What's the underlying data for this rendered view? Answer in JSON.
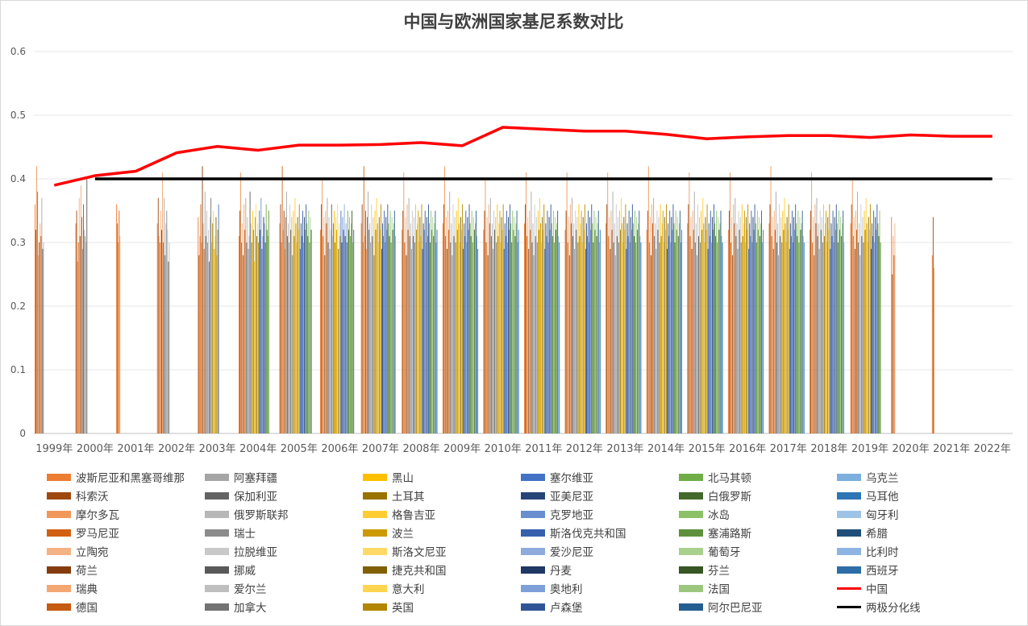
{
  "chart_data": {
    "type": "bar",
    "title": "中国与欧洲国家基尼系数对比",
    "categories": [
      "1999年",
      "2000年",
      "2001年",
      "2002年",
      "2003年",
      "2004年",
      "2005年",
      "2006年",
      "2007年",
      "2008年",
      "2009年",
      "2010年",
      "2011年",
      "2012年",
      "2013年",
      "2014年",
      "2015年",
      "2016年",
      "2017年",
      "2018年",
      "2019年",
      "2020年",
      "2021年",
      "2022年"
    ],
    "yticks": [
      "0",
      "0.1",
      "0.2",
      "0.3",
      "0.4",
      "0.5",
      "0.6"
    ],
    "ylim": [
      0,
      0.6
    ],
    "grid": true,
    "legend_position": "bottom",
    "bar_series": [
      {
        "name": "波斯尼亚和黑塞哥维那",
        "color": "#ed7d31"
      },
      {
        "name": "科索沃",
        "color": "#9e480e"
      },
      {
        "name": "摩尔多瓦",
        "color": "#f1975a"
      },
      {
        "name": "罗马尼亚",
        "color": "#d26012"
      },
      {
        "name": "立陶宛",
        "color": "#f4b183"
      },
      {
        "name": "荷兰",
        "color": "#843c0c"
      },
      {
        "name": "瑞典",
        "color": "#f4a773"
      },
      {
        "name": "德国",
        "color": "#c55a11"
      },
      {
        "name": "阿塞拜疆",
        "color": "#a5a5a5"
      },
      {
        "name": "保加利亚",
        "color": "#636363"
      },
      {
        "name": "俄罗斯联邦",
        "color": "#b7b7b7"
      },
      {
        "name": "瑞士",
        "color": "#8c8c8c"
      },
      {
        "name": "拉脱维亚",
        "color": "#c9c9c9"
      },
      {
        "name": "挪威",
        "color": "#595959"
      },
      {
        "name": "爱尔兰",
        "color": "#bfbfbf"
      },
      {
        "name": "加拿大",
        "color": "#737373"
      },
      {
        "name": "黑山",
        "color": "#ffc000"
      },
      {
        "name": "土耳其",
        "color": "#997300"
      },
      {
        "name": "格鲁吉亚",
        "color": "#ffcd33"
      },
      {
        "name": "波兰",
        "color": "#cc9a00"
      },
      {
        "name": "斯洛文尼亚",
        "color": "#ffd966"
      },
      {
        "name": "捷克共和国",
        "color": "#806000"
      },
      {
        "name": "意大利",
        "color": "#ffd54f"
      },
      {
        "name": "英国",
        "color": "#b38600"
      },
      {
        "name": "塞尔维亚",
        "color": "#4472c4"
      },
      {
        "name": "亚美尼亚",
        "color": "#264478"
      },
      {
        "name": "克罗地亚",
        "color": "#698ed0"
      },
      {
        "name": "斯洛伐克共和国",
        "color": "#3660ad"
      },
      {
        "name": "爱沙尼亚",
        "color": "#8faadc"
      },
      {
        "name": "丹麦",
        "color": "#1f3864"
      },
      {
        "name": "奥地利",
        "color": "#7f9fd8"
      },
      {
        "name": "卢森堡",
        "color": "#2f5597"
      },
      {
        "name": "北马其顿",
        "color": "#70ad47"
      },
      {
        "name": "白俄罗斯",
        "color": "#43682b"
      },
      {
        "name": "冰岛",
        "color": "#8cc168"
      },
      {
        "name": "塞浦路斯",
        "color": "#5f913c"
      },
      {
        "name": "葡萄牙",
        "color": "#a9d18e"
      },
      {
        "name": "芬兰",
        "color": "#375623"
      },
      {
        "name": "法国",
        "color": "#9dc77f"
      },
      {
        "name": "阿尔巴尼亚",
        "color": "#255e91"
      },
      {
        "name": "乌克兰",
        "color": "#7cafdd"
      },
      {
        "name": "马耳他",
        "color": "#2e75b6"
      },
      {
        "name": "匈牙利",
        "color": "#9dc3e6"
      },
      {
        "name": "希腊",
        "color": "#1f4e79"
      },
      {
        "name": "比利时",
        "color": "#8eb4e3"
      },
      {
        "name": "西班牙",
        "color": "#2e6ea8"
      }
    ],
    "bar_values_per_year": [
      [
        0.36,
        0.32,
        0.42,
        0.38,
        0.28,
        0.3,
        0.33,
        0.31,
        0.37,
        0.29,
        0.3
      ],
      [
        0.33,
        0.35,
        0.27,
        0.3,
        0.37,
        0.31,
        0.39,
        0.34,
        0.29,
        0.36,
        0.32,
        0.31,
        0.3,
        0.4
      ],
      [
        0.36,
        0.33,
        0.3,
        0.35,
        0.31
      ],
      [
        0.33,
        0.37,
        0.31,
        0.3,
        0.35,
        0.32,
        0.41,
        0.3,
        0.37,
        0.28,
        0.33,
        0.35,
        0.32,
        0.27,
        0.3
      ],
      [
        0.34,
        0.28,
        0.31,
        0.36,
        0.3,
        0.42,
        0.33,
        0.29,
        0.38,
        0.31,
        0.35,
        0.3,
        0.32,
        0.27,
        0.34,
        0.37,
        0.3,
        0.33,
        0.35,
        0.29,
        0.31,
        0.34,
        0.28,
        0.32,
        0.36
      ],
      [
        0.31,
        0.35,
        0.41,
        0.3,
        0.33,
        0.28,
        0.36,
        0.32,
        0.37,
        0.3,
        0.34,
        0.29,
        0.31,
        0.38,
        0.33,
        0.3,
        0.35,
        0.32,
        0.27,
        0.34,
        0.36,
        0.31,
        0.33,
        0.3,
        0.35,
        0.32,
        0.37,
        0.29,
        0.31,
        0.34,
        0.33,
        0.3,
        0.36,
        0.32,
        0.31,
        0.35
      ],
      [
        0.33,
        0.36,
        0.3,
        0.42,
        0.32,
        0.35,
        0.29,
        0.34,
        0.38,
        0.31,
        0.33,
        0.3,
        0.36,
        0.32,
        0.34,
        0.28,
        0.35,
        0.31,
        0.37,
        0.33,
        0.3,
        0.34,
        0.32,
        0.36,
        0.29,
        0.33,
        0.31,
        0.35,
        0.3,
        0.34,
        0.32,
        0.36,
        0.33,
        0.31,
        0.35,
        0.3,
        0.34,
        0.32
      ],
      [
        0.32,
        0.36,
        0.4,
        0.31,
        0.34,
        0.28,
        0.35,
        0.33,
        0.37,
        0.3,
        0.34,
        0.29,
        0.32,
        0.36,
        0.31,
        0.33,
        0.35,
        0.3,
        0.34,
        0.32,
        0.36,
        0.29,
        0.33,
        0.31,
        0.35,
        0.3,
        0.34,
        0.32,
        0.36,
        0.31,
        0.33,
        0.3,
        0.35,
        0.32,
        0.34,
        0.31,
        0.33,
        0.35,
        0.3,
        0.32
      ],
      [
        0.33,
        0.36,
        0.3,
        0.42,
        0.31,
        0.35,
        0.29,
        0.34,
        0.38,
        0.32,
        0.33,
        0.3,
        0.36,
        0.31,
        0.34,
        0.28,
        0.35,
        0.32,
        0.37,
        0.33,
        0.3,
        0.34,
        0.32,
        0.36,
        0.29,
        0.33,
        0.31,
        0.35,
        0.3,
        0.34,
        0.32,
        0.36,
        0.33,
        0.31,
        0.35,
        0.3,
        0.34,
        0.32,
        0.33,
        0.35,
        0.31
      ],
      [
        0.32,
        0.35,
        0.41,
        0.3,
        0.34,
        0.28,
        0.36,
        0.32,
        0.37,
        0.31,
        0.33,
        0.29,
        0.35,
        0.31,
        0.34,
        0.3,
        0.36,
        0.32,
        0.33,
        0.35,
        0.3,
        0.34,
        0.31,
        0.36,
        0.29,
        0.33,
        0.32,
        0.35,
        0.3,
        0.34,
        0.31,
        0.36,
        0.33,
        0.3,
        0.35,
        0.32,
        0.34,
        0.31,
        0.33,
        0.35,
        0.3,
        0.32
      ],
      [
        0.33,
        0.36,
        0.42,
        0.31,
        0.34,
        0.29,
        0.35,
        0.32,
        0.38,
        0.3,
        0.33,
        0.28,
        0.36,
        0.31,
        0.34,
        0.3,
        0.35,
        0.32,
        0.37,
        0.33,
        0.3,
        0.34,
        0.32,
        0.36,
        0.29,
        0.33,
        0.31,
        0.35,
        0.3,
        0.34,
        0.32,
        0.36,
        0.33,
        0.31,
        0.35,
        0.3,
        0.34,
        0.32,
        0.33,
        0.35,
        0.31,
        0.29
      ],
      [
        0.32,
        0.35,
        0.4,
        0.3,
        0.34,
        0.28,
        0.36,
        0.33,
        0.37,
        0.31,
        0.33,
        0.29,
        0.35,
        0.32,
        0.34,
        0.3,
        0.36,
        0.31,
        0.33,
        0.35,
        0.3,
        0.34,
        0.32,
        0.36,
        0.29,
        0.33,
        0.31,
        0.35,
        0.3,
        0.34,
        0.32,
        0.36,
        0.33,
        0.3,
        0.35,
        0.32,
        0.34,
        0.31,
        0.33,
        0.35,
        0.3,
        0.32
      ],
      [
        0.33,
        0.36,
        0.41,
        0.31,
        0.34,
        0.29,
        0.35,
        0.32,
        0.38,
        0.3,
        0.33,
        0.28,
        0.36,
        0.31,
        0.34,
        0.3,
        0.35,
        0.32,
        0.37,
        0.33,
        0.3,
        0.34,
        0.32,
        0.36,
        0.29,
        0.33,
        0.31,
        0.35,
        0.3,
        0.34,
        0.32,
        0.36,
        0.33,
        0.31,
        0.35,
        0.3,
        0.34,
        0.32,
        0.33,
        0.35,
        0.31,
        0.3
      ],
      [
        0.32,
        0.35,
        0.41,
        0.3,
        0.34,
        0.28,
        0.36,
        0.33,
        0.37,
        0.31,
        0.33,
        0.29,
        0.35,
        0.32,
        0.34,
        0.3,
        0.36,
        0.31,
        0.33,
        0.35,
        0.3,
        0.34,
        0.32,
        0.36,
        0.29,
        0.33,
        0.31,
        0.35,
        0.3,
        0.34,
        0.32,
        0.36,
        0.33,
        0.3,
        0.35,
        0.32,
        0.34,
        0.31,
        0.33,
        0.35,
        0.3,
        0.32
      ],
      [
        0.33,
        0.36,
        0.41,
        0.31,
        0.34,
        0.29,
        0.35,
        0.32,
        0.38,
        0.3,
        0.33,
        0.28,
        0.36,
        0.31,
        0.34,
        0.3,
        0.35,
        0.32,
        0.37,
        0.33,
        0.3,
        0.34,
        0.32,
        0.36,
        0.29,
        0.33,
        0.31,
        0.35,
        0.3,
        0.34,
        0.32,
        0.36,
        0.33,
        0.31,
        0.35,
        0.3,
        0.34,
        0.32,
        0.33,
        0.35,
        0.31,
        0.3
      ],
      [
        0.32,
        0.35,
        0.42,
        0.3,
        0.34,
        0.28,
        0.36,
        0.33,
        0.37,
        0.31,
        0.33,
        0.29,
        0.35,
        0.32,
        0.34,
        0.3,
        0.36,
        0.31,
        0.33,
        0.35,
        0.3,
        0.34,
        0.32,
        0.36,
        0.29,
        0.33,
        0.31,
        0.35,
        0.3,
        0.34,
        0.32,
        0.36,
        0.33,
        0.3,
        0.35,
        0.32,
        0.34,
        0.31,
        0.33,
        0.35,
        0.3,
        0.32
      ],
      [
        0.33,
        0.36,
        0.41,
        0.31,
        0.34,
        0.29,
        0.35,
        0.32,
        0.38,
        0.3,
        0.33,
        0.28,
        0.36,
        0.31,
        0.34,
        0.3,
        0.35,
        0.32,
        0.37,
        0.33,
        0.3,
        0.34,
        0.32,
        0.36,
        0.29,
        0.33,
        0.31,
        0.35,
        0.3,
        0.34,
        0.32,
        0.36,
        0.33,
        0.31,
        0.35,
        0.3,
        0.34,
        0.32,
        0.33,
        0.35,
        0.31,
        0.3
      ],
      [
        0.32,
        0.35,
        0.41,
        0.3,
        0.34,
        0.28,
        0.36,
        0.33,
        0.37,
        0.31,
        0.33,
        0.29,
        0.35,
        0.32,
        0.34,
        0.3,
        0.36,
        0.31,
        0.33,
        0.35,
        0.3,
        0.34,
        0.32,
        0.36,
        0.29,
        0.33,
        0.31,
        0.35,
        0.3,
        0.34,
        0.32,
        0.36,
        0.33,
        0.3,
        0.35,
        0.32,
        0.34,
        0.31,
        0.33,
        0.35,
        0.3,
        0.32
      ],
      [
        0.33,
        0.36,
        0.42,
        0.31,
        0.34,
        0.29,
        0.35,
        0.32,
        0.38,
        0.3,
        0.33,
        0.28,
        0.36,
        0.31,
        0.34,
        0.3,
        0.35,
        0.32,
        0.37,
        0.33,
        0.3,
        0.34,
        0.32,
        0.36,
        0.29,
        0.33,
        0.31,
        0.35,
        0.3,
        0.34,
        0.32,
        0.36,
        0.33,
        0.31,
        0.35,
        0.3,
        0.34,
        0.32,
        0.33,
        0.35,
        0.31,
        0.3
      ],
      [
        0.32,
        0.35,
        0.41,
        0.3,
        0.34,
        0.28,
        0.36,
        0.33,
        0.37,
        0.31,
        0.33,
        0.29,
        0.35,
        0.32,
        0.34,
        0.3,
        0.36,
        0.31,
        0.33,
        0.35,
        0.3,
        0.34,
        0.32,
        0.36,
        0.29,
        0.33,
        0.31,
        0.35,
        0.3,
        0.34,
        0.32,
        0.36,
        0.33,
        0.3,
        0.35,
        0.32,
        0.34,
        0.31,
        0.33,
        0.35,
        0.3
      ],
      [
        0.33,
        0.36,
        0.4,
        0.31,
        0.34,
        0.29,
        0.35,
        0.32,
        0.38,
        0.3,
        0.33,
        0.28,
        0.36,
        0.31,
        0.34,
        0.3,
        0.35,
        0.32,
        0.37,
        0.33,
        0.3,
        0.34,
        0.32,
        0.36,
        0.29,
        0.33,
        0.31,
        0.35,
        0.3,
        0.34,
        0.32,
        0.36,
        0.33,
        0.31,
        0.35,
        0.3
      ],
      [
        0.34,
        0.25,
        0.31,
        0.28,
        0.33
      ],
      [
        0.28,
        0.34,
        0.26
      ],
      []
    ],
    "line_series": [
      {
        "name": "中国",
        "color": "#ff0000",
        "values": [
          0.39,
          0.405,
          0.412,
          0.441,
          0.451,
          0.445,
          0.453,
          0.453,
          0.454,
          0.457,
          0.452,
          0.481,
          0.478,
          0.475,
          0.475,
          0.47,
          0.463,
          0.466,
          0.468,
          0.468,
          0.465,
          0.469,
          0.467,
          0.467
        ]
      },
      {
        "name": "两极分化线",
        "color": "#000000",
        "values": [
          null,
          0.4,
          0.4,
          0.4,
          0.4,
          0.4,
          0.4,
          0.4,
          0.4,
          0.4,
          0.4,
          0.4,
          0.4,
          0.4,
          0.4,
          0.4,
          0.4,
          0.4,
          0.4,
          0.4,
          0.4,
          0.4,
          0.4,
          0.4
        ]
      }
    ]
  }
}
